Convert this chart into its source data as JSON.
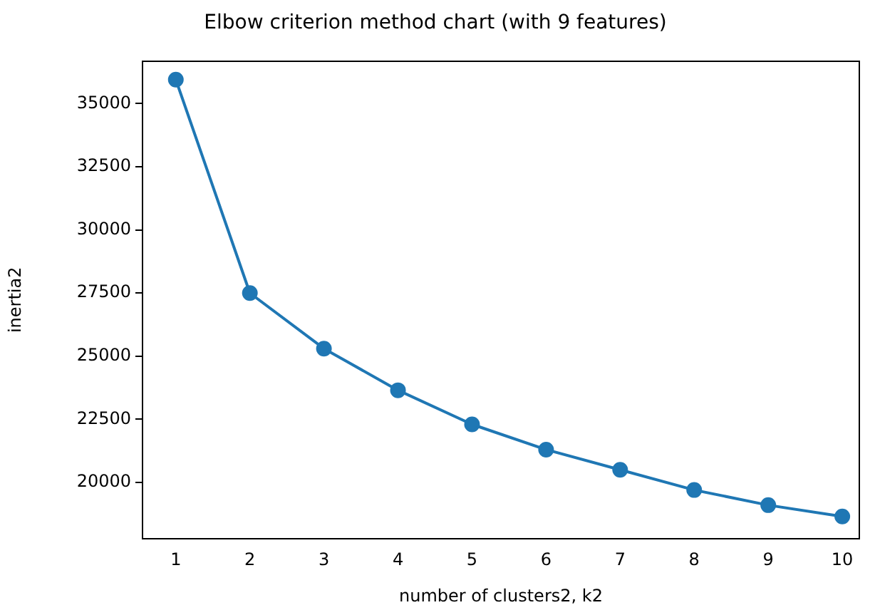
{
  "chart_data": {
    "type": "line",
    "title": "Elbow criterion method chart (with 9 features)",
    "xlabel": "number of clusters2, k2",
    "ylabel": "inertia2",
    "x": [
      1,
      2,
      3,
      4,
      5,
      6,
      7,
      8,
      9,
      10
    ],
    "series": [
      {
        "color": "#1f77b4",
        "values": [
          35950,
          27500,
          25300,
          23650,
          22300,
          21300,
          20500,
          19700,
          19100,
          18650
        ]
      }
    ],
    "xlim": [
      0.55,
      10.23
    ],
    "xticks": [
      1,
      2,
      3,
      4,
      5,
      6,
      7,
      8,
      9,
      10
    ],
    "ylim": [
      17770,
      36690
    ],
    "yticks": [
      20000,
      22500,
      25000,
      27500,
      30000,
      32500,
      35000
    ],
    "grid": false,
    "legend": false,
    "marker": "circle",
    "line_style": "solid"
  }
}
